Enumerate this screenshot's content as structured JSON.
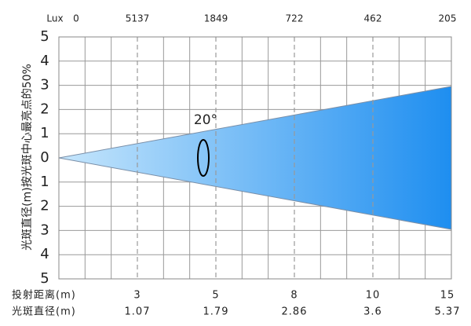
{
  "chart_data": {
    "type": "beam",
    "y_title": "光斑直径(m)按光斑中心最亮点的50%",
    "annotation": "20°",
    "lux_label": "Lux",
    "lux_at_origin": 0,
    "distance_label": "投射距离(m)",
    "diameter_label": "光斑直径(m)",
    "distances": [
      3,
      5,
      8,
      10,
      15
    ],
    "lux": [
      5137,
      1849,
      722,
      462,
      205
    ],
    "diameters": [
      1.07,
      1.79,
      2.86,
      3.6,
      5.37
    ],
    "ylim": [
      -5,
      5
    ],
    "yticks": [
      {
        "value": 5,
        "label": "5"
      },
      {
        "value": 4,
        "label": "4"
      },
      {
        "value": 3,
        "label": "3"
      },
      {
        "value": 2,
        "label": "2"
      },
      {
        "value": 1,
        "label": "1"
      },
      {
        "value": 0,
        "label": "0"
      },
      {
        "value": -1,
        "label": "1"
      },
      {
        "value": -2,
        "label": "2"
      },
      {
        "value": -3,
        "label": "3"
      },
      {
        "value": -4,
        "label": "4"
      },
      {
        "value": -5,
        "label": "5"
      }
    ],
    "grid": true
  }
}
